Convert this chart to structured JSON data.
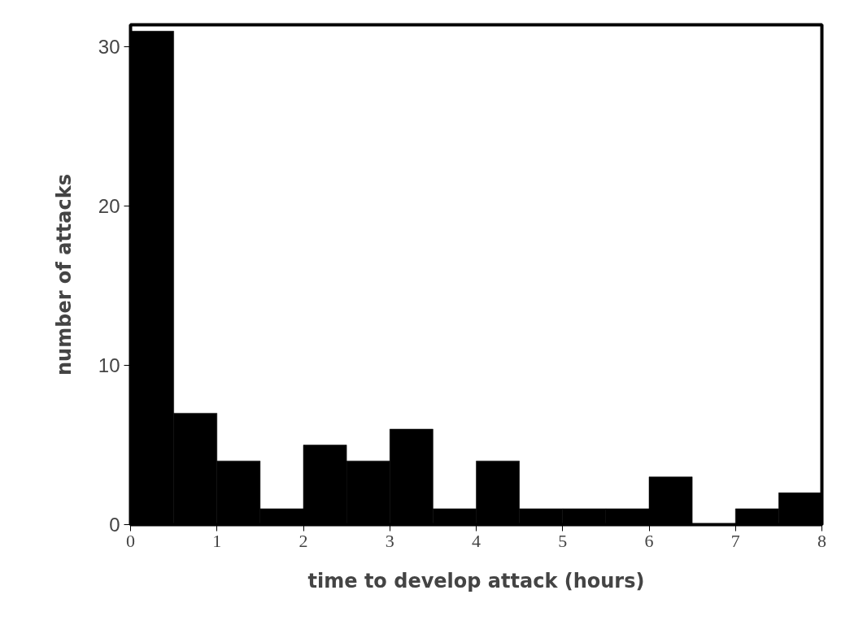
{
  "chart_data": {
    "type": "histogram",
    "xlabel": "time to develop attack (hours)",
    "ylabel": "number of attacks",
    "bins": [
      0,
      0.5,
      1,
      1.5,
      2,
      2.5,
      3,
      3.5,
      4,
      4.5,
      5,
      5.5,
      6,
      6.5,
      7,
      7.5,
      8
    ],
    "values": [
      31,
      7,
      4,
      1,
      5,
      4,
      6,
      1,
      4,
      1,
      1,
      1,
      3,
      0,
      1,
      2
    ],
    "color": "#000000",
    "xlim": [
      0,
      8
    ],
    "ylim": [
      0,
      31.4
    ],
    "xticks": [
      0,
      1,
      2,
      3,
      4,
      5,
      6,
      7,
      8
    ],
    "yticks": [
      0,
      10,
      20,
      30
    ],
    "grid": false
  }
}
